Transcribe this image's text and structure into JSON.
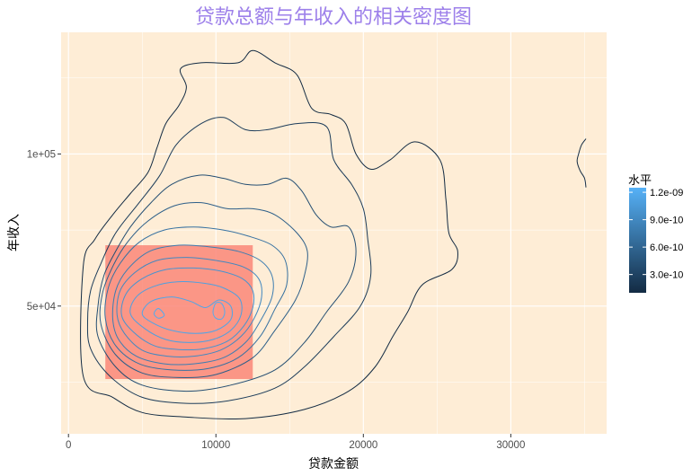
{
  "chart_data": {
    "type": "contour-density",
    "title": "贷款总额与年收入的相关密度图",
    "xlabel": "贷款金额",
    "ylabel": "年收入",
    "x_ticks": [
      {
        "value": 0,
        "label": "0"
      },
      {
        "value": 10000,
        "label": "10000"
      },
      {
        "value": 20000,
        "label": "20000"
      },
      {
        "value": 30000,
        "label": "30000"
      }
    ],
    "y_ticks": [
      {
        "value": 50000,
        "label": "5e+04"
      },
      {
        "value": 100000,
        "label": "1e+05"
      }
    ],
    "xlim": [
      -500,
      36500
    ],
    "ylim": [
      8000,
      140000
    ],
    "highlight_rect": {
      "x": [
        2500,
        12500
      ],
      "y": [
        26000,
        70000
      ],
      "color": "#fa8072"
    },
    "legend": {
      "title": "水平",
      "range": [
        1e-10,
        1.25e-09
      ],
      "ticks": [
        {
          "value": 3e-10,
          "label": "3.0e-10"
        },
        {
          "value": 6e-10,
          "label": "6.0e-10"
        },
        {
          "value": 9e-10,
          "label": "9.0e-10"
        },
        {
          "value": 1.2e-09,
          "label": "1.2e-09"
        }
      ],
      "colors": [
        "#132b43",
        "#56b1f7"
      ]
    },
    "contours": [
      {
        "level": 1e-10,
        "points": [
          [
            1000,
            63000
          ],
          [
            1800,
            72000
          ],
          [
            3000,
            80000
          ],
          [
            4200,
            87000
          ],
          [
            5400,
            94000
          ],
          [
            6000,
            102000
          ],
          [
            6600,
            110000
          ],
          [
            7500,
            116000
          ],
          [
            8000,
            122000
          ],
          [
            7600,
            128000
          ],
          [
            9000,
            130000
          ],
          [
            11500,
            130000
          ],
          [
            12500,
            134000
          ],
          [
            14000,
            130000
          ],
          [
            15500,
            126000
          ],
          [
            16500,
            115000
          ],
          [
            17800,
            113000
          ],
          [
            18800,
            110000
          ],
          [
            19500,
            100000
          ],
          [
            20500,
            95000
          ],
          [
            21800,
            98000
          ],
          [
            23500,
            104000
          ],
          [
            25200,
            98000
          ],
          [
            25600,
            85000
          ],
          [
            25800,
            74000
          ],
          [
            26400,
            68000
          ],
          [
            26000,
            62000
          ],
          [
            24000,
            57000
          ],
          [
            23000,
            48000
          ],
          [
            22000,
            40000
          ],
          [
            20800,
            30000
          ],
          [
            19000,
            22000
          ],
          [
            16000,
            16000
          ],
          [
            12000,
            13000
          ],
          [
            8000,
            13500
          ],
          [
            5000,
            15000
          ],
          [
            3000,
            20000
          ],
          [
            1000,
            27000
          ]
        ]
      },
      {
        "level": 2.5e-10,
        "points": [
          [
            1500,
            36000
          ],
          [
            1300,
            45000
          ],
          [
            1500,
            55000
          ],
          [
            2200,
            64000
          ],
          [
            3200,
            74000
          ],
          [
            4800,
            84000
          ],
          [
            6200,
            93000
          ],
          [
            7300,
            103000
          ],
          [
            9000,
            110000
          ],
          [
            10500,
            112000
          ],
          [
            12000,
            108000
          ],
          [
            13500,
            108000
          ],
          [
            15500,
            110000
          ],
          [
            17500,
            109000
          ],
          [
            18000,
            98000
          ],
          [
            19200,
            90000
          ],
          [
            20000,
            82000
          ],
          [
            20300,
            72000
          ],
          [
            20500,
            60000
          ],
          [
            19800,
            50000
          ],
          [
            18000,
            40000
          ],
          [
            16000,
            30000
          ],
          [
            14000,
            23000
          ],
          [
            11000,
            19000
          ],
          [
            8000,
            18000
          ],
          [
            5000,
            20000
          ],
          [
            2800,
            27000
          ]
        ]
      },
      {
        "level": 4e-10,
        "points": [
          [
            2000,
            40000
          ],
          [
            2000,
            50000
          ],
          [
            2400,
            60000
          ],
          [
            3200,
            68000
          ],
          [
            4200,
            76000
          ],
          [
            5600,
            84000
          ],
          [
            7000,
            90000
          ],
          [
            8800,
            93000
          ],
          [
            10500,
            92000
          ],
          [
            12000,
            90000
          ],
          [
            13500,
            90000
          ],
          [
            14800,
            92000
          ],
          [
            15800,
            88000
          ],
          [
            16800,
            80000
          ],
          [
            17800,
            76000
          ],
          [
            19000,
            76000
          ],
          [
            19500,
            68000
          ],
          [
            19000,
            58000
          ],
          [
            17500,
            48000
          ],
          [
            16000,
            38000
          ],
          [
            14000,
            29000
          ],
          [
            11000,
            24000
          ],
          [
            8000,
            22000
          ],
          [
            5000,
            24000
          ],
          [
            3200,
            30000
          ]
        ]
      },
      {
        "level": 5.5e-10,
        "points": [
          [
            2200,
            44000
          ],
          [
            2300,
            54000
          ],
          [
            3000,
            63000
          ],
          [
            4000,
            71000
          ],
          [
            5400,
            78000
          ],
          [
            7200,
            83000
          ],
          [
            9000,
            84000
          ],
          [
            10800,
            82000
          ],
          [
            12500,
            82000
          ],
          [
            14000,
            80000
          ],
          [
            15500,
            74000
          ],
          [
            16200,
            68000
          ],
          [
            16000,
            60000
          ],
          [
            15400,
            52000
          ],
          [
            14000,
            42000
          ],
          [
            12500,
            33000
          ],
          [
            10000,
            27500
          ],
          [
            7500,
            26500
          ],
          [
            5000,
            28000
          ],
          [
            3200,
            34000
          ]
        ]
      },
      {
        "level": 7e-10,
        "points": [
          [
            2500,
            46000
          ],
          [
            2700,
            56000
          ],
          [
            3500,
            64000
          ],
          [
            4800,
            71000
          ],
          [
            6500,
            75000
          ],
          [
            8500,
            76000
          ],
          [
            10500,
            75000
          ],
          [
            12200,
            73000
          ],
          [
            13800,
            70000
          ],
          [
            14700,
            65000
          ],
          [
            14800,
            57000
          ],
          [
            14000,
            49000
          ],
          [
            13000,
            40000
          ],
          [
            11500,
            33000
          ],
          [
            9500,
            29500
          ],
          [
            7000,
            29000
          ],
          [
            4800,
            31000
          ],
          [
            3200,
            37000
          ]
        ]
      },
      {
        "level": 8e-10,
        "points": [
          [
            3000,
            46000
          ],
          [
            3200,
            55000
          ],
          [
            4000,
            62000
          ],
          [
            5500,
            68000
          ],
          [
            7500,
            70000
          ],
          [
            9500,
            69500
          ],
          [
            11500,
            68000
          ],
          [
            13000,
            65000
          ],
          [
            13800,
            60000
          ],
          [
            13800,
            53000
          ],
          [
            13000,
            45000
          ],
          [
            12000,
            38000
          ],
          [
            10500,
            33000
          ],
          [
            8500,
            31000
          ],
          [
            6500,
            31000
          ],
          [
            4600,
            33500
          ],
          [
            3400,
            39000
          ]
        ]
      },
      {
        "level": 9e-10,
        "points": [
          [
            3300,
            47000
          ],
          [
            3500,
            55000
          ],
          [
            4500,
            61000
          ],
          [
            6000,
            65000
          ],
          [
            8000,
            66000
          ],
          [
            10000,
            65000
          ],
          [
            11800,
            63000
          ],
          [
            12900,
            59000
          ],
          [
            13100,
            53000
          ],
          [
            12600,
            46000
          ],
          [
            11700,
            40000
          ],
          [
            10300,
            35500
          ],
          [
            8500,
            33500
          ],
          [
            6700,
            33500
          ],
          [
            5000,
            35500
          ],
          [
            3800,
            41000
          ]
        ]
      },
      {
        "level": 1e-09,
        "points": [
          [
            3600,
            47000
          ],
          [
            3900,
            54000
          ],
          [
            5000,
            59000
          ],
          [
            6600,
            62000
          ],
          [
            8500,
            62500
          ],
          [
            10300,
            61500
          ],
          [
            11800,
            59000
          ],
          [
            12500,
            55000
          ],
          [
            12500,
            49500
          ],
          [
            11900,
            43500
          ],
          [
            10800,
            38500
          ],
          [
            9200,
            36000
          ],
          [
            7500,
            35700
          ],
          [
            5800,
            37000
          ],
          [
            4400,
            41500
          ]
        ]
      },
      {
        "level": 1.1e-09,
        "points": [
          [
            4200,
            47500
          ],
          [
            4600,
            53000
          ],
          [
            5800,
            56500
          ],
          [
            7400,
            58000
          ],
          [
            9200,
            57500
          ],
          [
            10500,
            56000
          ],
          [
            11600,
            52500
          ],
          [
            11700,
            47000
          ],
          [
            11000,
            42000
          ],
          [
            9800,
            39000
          ],
          [
            8200,
            38000
          ],
          [
            6600,
            39000
          ],
          [
            5200,
            42500
          ]
        ]
      },
      {
        "level": 1.15e-09,
        "points": [
          [
            5000,
            47500
          ],
          [
            5600,
            51500
          ],
          [
            7000,
            53000
          ],
          [
            8300,
            51500
          ],
          [
            9300,
            49500
          ],
          [
            10200,
            52000
          ],
          [
            11000,
            50000
          ],
          [
            11000,
            45500
          ],
          [
            10000,
            42000
          ],
          [
            8600,
            41000
          ],
          [
            7000,
            42000
          ],
          [
            5700,
            44500
          ]
        ]
      },
      {
        "level": 1.2e-09,
        "points": [
          [
            5800,
            47500
          ],
          [
            6100,
            49200
          ],
          [
            6500,
            47000
          ],
          [
            6100,
            46000
          ]
        ]
      },
      {
        "level": 1.2e-09,
        "points": [
          [
            9800,
            48000
          ],
          [
            10000,
            51000
          ],
          [
            10400,
            50800
          ],
          [
            10600,
            48000
          ],
          [
            10400,
            45800
          ],
          [
            10000,
            46000
          ]
        ]
      },
      {
        "level": 1e-10,
        "closed": false,
        "points": [
          [
            35100,
            105000
          ],
          [
            34800,
            103000
          ],
          [
            34600,
            100000
          ],
          [
            34500,
            97500
          ],
          [
            34700,
            94500
          ],
          [
            35000,
            92000
          ],
          [
            35100,
            89000
          ]
        ]
      }
    ]
  }
}
